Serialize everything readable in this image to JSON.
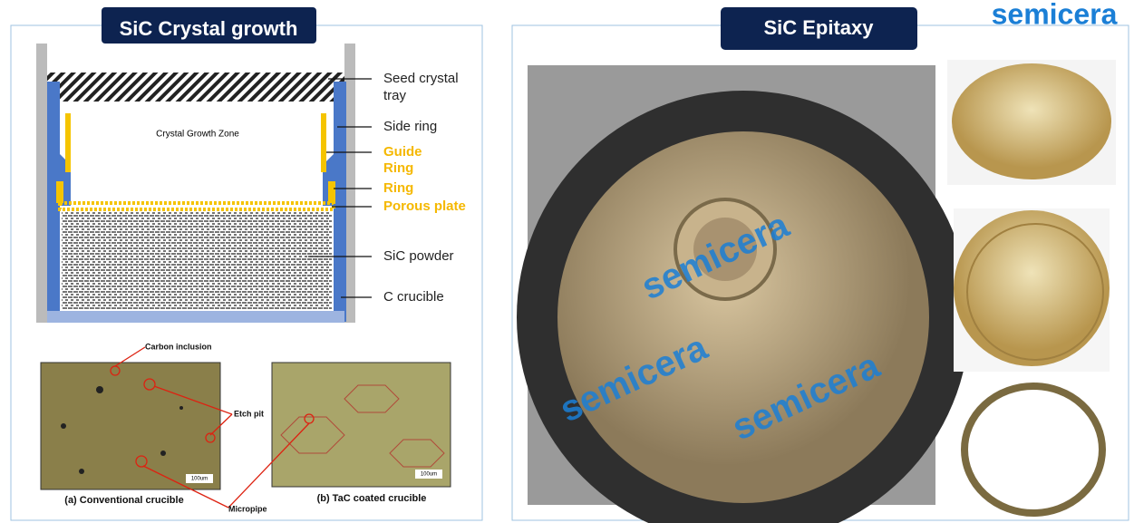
{
  "logo": "semicera",
  "left_panel": {
    "title": "SiC Crystal growth",
    "diagram": {
      "zone_label": "Crystal Growth Zone",
      "labels": [
        "Seed crystal",
        "tray",
        "Side ring",
        "Guide",
        "Ring",
        "Ring",
        "Porous plate",
        "SiC powder",
        "C crucible"
      ]
    },
    "micrographs": {
      "annotations": [
        "Carbon inclusion",
        "Etch pit",
        "Micropipe"
      ],
      "scale_bars": [
        "100um",
        "100um"
      ],
      "captions": [
        "(a) Conventional crucible",
        "(b) TaC coated crucible"
      ]
    }
  },
  "right_panel": {
    "title": "SiC Epitaxy"
  }
}
